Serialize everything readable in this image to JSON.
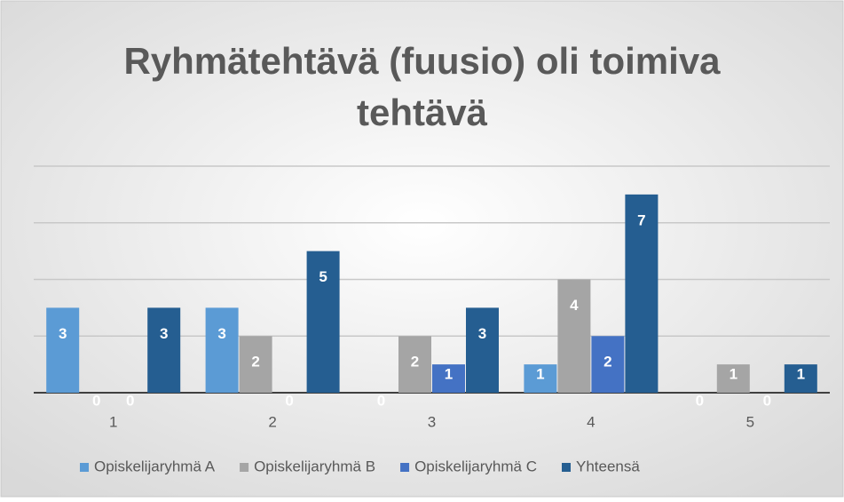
{
  "chart_data": {
    "type": "bar",
    "title": "Ryhmätehtävä (fuusio) oli toimiva tehtävä",
    "categories": [
      "1",
      "2",
      "3",
      "4",
      "5"
    ],
    "series": [
      {
        "name": "Opiskelijaryhmä A",
        "color": "#5b9bd5",
        "values": [
          3,
          3,
          0,
          1,
          0
        ]
      },
      {
        "name": "Opiskelijaryhmä B",
        "color": "#a5a5a5",
        "values": [
          0,
          2,
          2,
          4,
          1
        ]
      },
      {
        "name": "Opiskelijaryhmä C",
        "color": "#4472c4",
        "values": [
          0,
          0,
          1,
          2,
          0
        ]
      },
      {
        "name": "Yhteensä",
        "color": "#255e91",
        "values": [
          3,
          5,
          3,
          7,
          1
        ]
      }
    ],
    "ylim": [
      0,
      8
    ],
    "yticks": [
      0,
      2,
      4,
      6,
      8
    ],
    "grid": true,
    "legend": "bottom"
  }
}
